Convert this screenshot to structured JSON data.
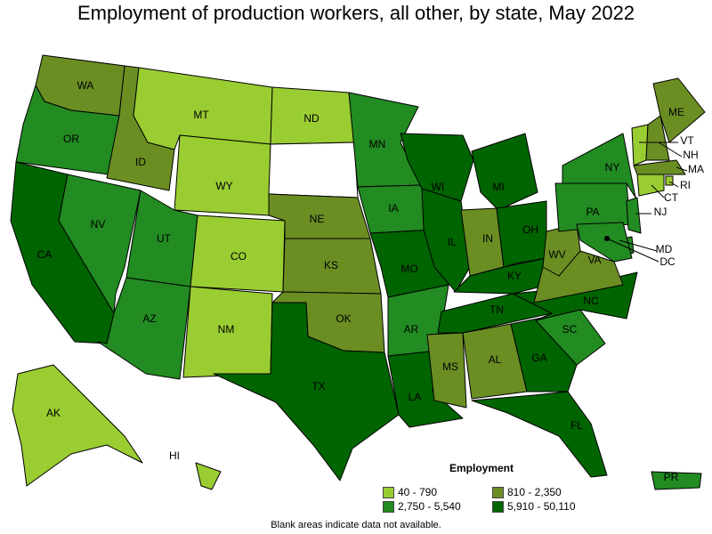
{
  "title": "Employment of production workers, all other, by state, May 2022",
  "legend": {
    "title": "Employment",
    "items": [
      {
        "label": "40 - 790",
        "color": "#9acd32"
      },
      {
        "label": "810 - 2,350",
        "color": "#6b8e23"
      },
      {
        "label": "2,750 - 5,540",
        "color": "#228b22"
      },
      {
        "label": "5,910 - 50,110",
        "color": "#006400"
      }
    ]
  },
  "note": "Blank areas indicate data not available.",
  "states": {
    "WA": {
      "label": "WA",
      "bin": 1
    },
    "OR": {
      "label": "OR",
      "bin": 2
    },
    "CA": {
      "label": "CA",
      "bin": 3
    },
    "NV": {
      "label": "NV",
      "bin": 2
    },
    "ID": {
      "label": "ID",
      "bin": 1
    },
    "MT": {
      "label": "MT",
      "bin": 0
    },
    "WY": {
      "label": "WY",
      "bin": 0
    },
    "UT": {
      "label": "UT",
      "bin": 2
    },
    "AZ": {
      "label": "AZ",
      "bin": 2
    },
    "CO": {
      "label": "CO",
      "bin": 0
    },
    "NM": {
      "label": "NM",
      "bin": 0
    },
    "ND": {
      "label": "ND",
      "bin": 0
    },
    "SD": {
      "label": "",
      "bin": -1
    },
    "NE": {
      "label": "NE",
      "bin": 1
    },
    "KS": {
      "label": "KS",
      "bin": 1
    },
    "OK": {
      "label": "OK",
      "bin": 1
    },
    "TX": {
      "label": "TX",
      "bin": 3
    },
    "MN": {
      "label": "MN",
      "bin": 2
    },
    "IA": {
      "label": "IA",
      "bin": 2
    },
    "MO": {
      "label": "MO",
      "bin": 3
    },
    "AR": {
      "label": "AR",
      "bin": 2
    },
    "LA": {
      "label": "LA",
      "bin": 3
    },
    "WI": {
      "label": "WI",
      "bin": 3
    },
    "IL": {
      "label": "IL",
      "bin": 3
    },
    "MI": {
      "label": "MI",
      "bin": 3
    },
    "IN": {
      "label": "IN",
      "bin": 1
    },
    "OH": {
      "label": "OH",
      "bin": 3
    },
    "KY": {
      "label": "KY",
      "bin": 3
    },
    "TN": {
      "label": "TN",
      "bin": 3
    },
    "MS": {
      "label": "MS",
      "bin": 1
    },
    "AL": {
      "label": "AL",
      "bin": 1
    },
    "GA": {
      "label": "GA",
      "bin": 3
    },
    "FL": {
      "label": "FL",
      "bin": 3
    },
    "SC": {
      "label": "SC",
      "bin": 2
    },
    "NC": {
      "label": "NC",
      "bin": 3
    },
    "VA": {
      "label": "VA",
      "bin": 1
    },
    "WV": {
      "label": "WV",
      "bin": 1
    },
    "PA": {
      "label": "PA",
      "bin": 2
    },
    "NY": {
      "label": "NY",
      "bin": 2
    },
    "ME": {
      "label": "ME",
      "bin": 1
    },
    "VT": {
      "label": "VT",
      "bin": 0
    },
    "NH": {
      "label": "NH",
      "bin": 1
    },
    "MA": {
      "label": "MA",
      "bin": 1
    },
    "RI": {
      "label": "RI",
      "bin": 0
    },
    "CT": {
      "label": "CT",
      "bin": 0
    },
    "NJ": {
      "label": "NJ",
      "bin": 2
    },
    "DE": {
      "label": "",
      "bin": 2
    },
    "MD": {
      "label": "MD",
      "bin": 2
    },
    "DC": {
      "label": "DC",
      "bin": 3
    },
    "AK": {
      "label": "AK",
      "bin": 0
    },
    "HI": {
      "label": "HI",
      "bin": 0
    },
    "PR": {
      "label": "PR",
      "bin": 2
    }
  }
}
